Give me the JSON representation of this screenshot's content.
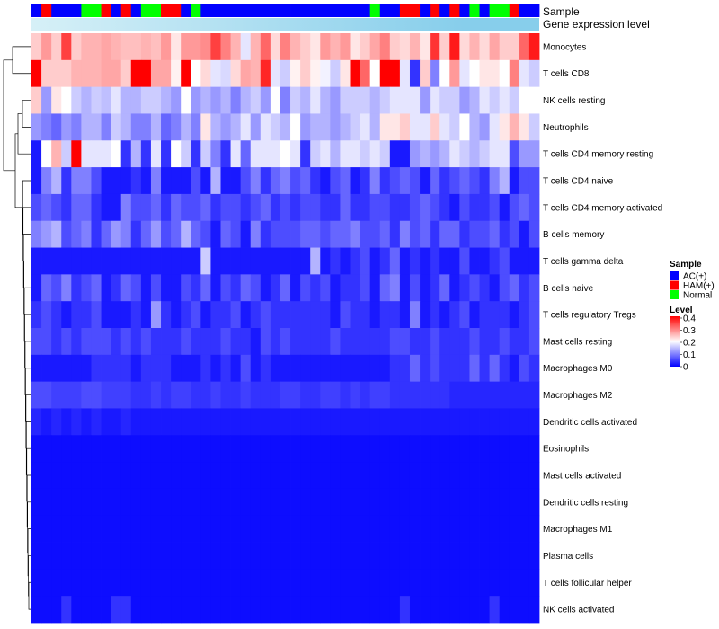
{
  "chart_data": {
    "type": "heatmap",
    "title": "",
    "row_labels": [
      "Monocytes",
      "T cells CD8",
      "NK cells resting",
      "Neutrophils",
      "T cells CD4 memory resting",
      "T cells CD4 naive",
      "T cells CD4 memory activated",
      "B cells memory",
      "T cells gamma delta",
      "B cells naive",
      "T cells regulatory  Tregs",
      "Mast cells resting",
      "Macrophages M0",
      "Macrophages M2",
      "Dendritic cells activated",
      "Eosinophils",
      "Mast cells activated",
      "Dendritic cells resting",
      "Macrophages M1",
      "Plasma cells",
      "T cells follicular helper",
      "NK cells activated"
    ],
    "sample_annotation_label": "Sample",
    "expression_annotation_label": "Gene expression level",
    "sample_groups": [
      "AC(+)",
      "HAM(+)",
      "AC(+)",
      "AC(+)",
      "AC(+)",
      "Normal",
      "Normal",
      "HAM(+)",
      "AC(+)",
      "HAM(+)",
      "AC(+)",
      "Normal",
      "Normal",
      "HAM(+)",
      "HAM(+)",
      "AC(+)",
      "Normal",
      "AC(+)",
      "AC(+)",
      "AC(+)",
      "AC(+)",
      "AC(+)",
      "AC(+)",
      "AC(+)",
      "AC(+)",
      "AC(+)",
      "AC(+)",
      "AC(+)",
      "AC(+)",
      "AC(+)",
      "AC(+)",
      "AC(+)",
      "AC(+)",
      "AC(+)",
      "Normal",
      "AC(+)",
      "AC(+)",
      "HAM(+)",
      "HAM(+)",
      "AC(+)",
      "HAM(+)",
      "AC(+)",
      "HAM(+)",
      "AC(+)",
      "Normal",
      "AC(+)",
      "Normal",
      "Normal",
      "HAM(+)",
      "AC(+)",
      "AC(+)"
    ],
    "color_scale": {
      "min": 0,
      "max": 0.4,
      "low": "#0000ff",
      "mid": "#ffffff",
      "high": "#ff0000"
    },
    "values": [
      [
        0.24,
        0.28,
        0.24,
        0.35,
        0.24,
        0.26,
        0.26,
        0.27,
        0.26,
        0.25,
        0.25,
        0.26,
        0.25,
        0.28,
        0.22,
        0.28,
        0.28,
        0.29,
        0.35,
        0.3,
        0.26,
        0.18,
        0.26,
        0.32,
        0.23,
        0.3,
        0.26,
        0.24,
        0.22,
        0.28,
        0.26,
        0.28,
        0.22,
        0.24,
        0.27,
        0.3,
        0.24,
        0.23,
        0.26,
        0.22,
        0.36,
        0.24,
        0.38,
        0.23,
        0.26,
        0.23,
        0.27,
        0.24,
        0.24,
        0.32,
        0.38
      ],
      [
        0.4,
        0.24,
        0.24,
        0.24,
        0.26,
        0.26,
        0.26,
        0.27,
        0.27,
        0.24,
        0.4,
        0.4,
        0.27,
        0.27,
        0.21,
        0.4,
        0.2,
        0.23,
        0.18,
        0.17,
        0.23,
        0.27,
        0.26,
        0.37,
        0.18,
        0.16,
        0.21,
        0.24,
        0.21,
        0.19,
        0.16,
        0.22,
        0.4,
        0.32,
        0.2,
        0.4,
        0.4,
        0.18,
        0.04,
        0.24,
        0.1,
        0.2,
        0.28,
        0.18,
        0.2,
        0.22,
        0.22,
        0.2,
        0.3,
        0.18,
        0.16
      ],
      [
        0.24,
        0.12,
        0.22,
        0.2,
        0.16,
        0.14,
        0.16,
        0.15,
        0.18,
        0.14,
        0.14,
        0.16,
        0.16,
        0.14,
        0.12,
        0.2,
        0.12,
        0.14,
        0.12,
        0.14,
        0.1,
        0.14,
        0.16,
        0.12,
        0.2,
        0.1,
        0.16,
        0.14,
        0.18,
        0.14,
        0.12,
        0.16,
        0.16,
        0.16,
        0.14,
        0.16,
        0.18,
        0.18,
        0.18,
        0.12,
        0.18,
        0.16,
        0.16,
        0.12,
        0.14,
        0.18,
        0.16,
        0.18,
        0.16,
        0.2,
        0.2
      ],
      [
        0.12,
        0.1,
        0.08,
        0.12,
        0.1,
        0.14,
        0.14,
        0.1,
        0.16,
        0.14,
        0.1,
        0.1,
        0.14,
        0.08,
        0.1,
        0.14,
        0.1,
        0.22,
        0.14,
        0.12,
        0.14,
        0.18,
        0.12,
        0.18,
        0.16,
        0.14,
        0.2,
        0.12,
        0.14,
        0.14,
        0.12,
        0.14,
        0.16,
        0.18,
        0.14,
        0.22,
        0.22,
        0.24,
        0.18,
        0.18,
        0.24,
        0.18,
        0.16,
        0.2,
        0.14,
        0.12,
        0.18,
        0.22,
        0.26,
        0.22,
        0.16
      ],
      [
        0.02,
        0.2,
        0.26,
        0.16,
        0.4,
        0.18,
        0.18,
        0.18,
        0.2,
        0.04,
        0.14,
        0.04,
        0.18,
        0.04,
        0.2,
        0.16,
        0.04,
        0.16,
        0.1,
        0.04,
        0.18,
        0.08,
        0.18,
        0.18,
        0.18,
        0.2,
        0.18,
        0.04,
        0.16,
        0.18,
        0.14,
        0.18,
        0.18,
        0.16,
        0.18,
        0.16,
        0.02,
        0.02,
        0.12,
        0.14,
        0.12,
        0.14,
        0.18,
        0.16,
        0.14,
        0.16,
        0.18,
        0.18,
        0.06,
        0.12,
        0.12
      ],
      [
        0.02,
        0.1,
        0.14,
        0.04,
        0.1,
        0.1,
        0.06,
        0.02,
        0.02,
        0.02,
        0.04,
        0.02,
        0.1,
        0.02,
        0.02,
        0.02,
        0.06,
        0.02,
        0.14,
        0.02,
        0.02,
        0.06,
        0.1,
        0.04,
        0.08,
        0.1,
        0.06,
        0.08,
        0.04,
        0.02,
        0.06,
        0.08,
        0.02,
        0.04,
        0.1,
        0.04,
        0.06,
        0.08,
        0.06,
        0.02,
        0.08,
        0.04,
        0.06,
        0.08,
        0.06,
        0.04,
        0.1,
        0.14,
        0.02,
        0.06,
        0.06
      ],
      [
        0.06,
        0.08,
        0.06,
        0.04,
        0.08,
        0.08,
        0.04,
        0.02,
        0.02,
        0.1,
        0.06,
        0.06,
        0.08,
        0.04,
        0.08,
        0.06,
        0.06,
        0.08,
        0.04,
        0.06,
        0.06,
        0.04,
        0.06,
        0.08,
        0.04,
        0.06,
        0.04,
        0.06,
        0.06,
        0.04,
        0.04,
        0.08,
        0.04,
        0.04,
        0.06,
        0.06,
        0.04,
        0.04,
        0.06,
        0.08,
        0.06,
        0.04,
        0.02,
        0.06,
        0.04,
        0.04,
        0.06,
        0.02,
        0.06,
        0.08,
        0.06
      ],
      [
        0.1,
        0.12,
        0.14,
        0.06,
        0.08,
        0.1,
        0.04,
        0.08,
        0.12,
        0.1,
        0.04,
        0.08,
        0.12,
        0.06,
        0.08,
        0.14,
        0.08,
        0.06,
        0.02,
        0.08,
        0.06,
        0.02,
        0.1,
        0.04,
        0.06,
        0.06,
        0.06,
        0.08,
        0.08,
        0.06,
        0.08,
        0.08,
        0.1,
        0.06,
        0.06,
        0.08,
        0.04,
        0.1,
        0.06,
        0.08,
        0.04,
        0.08,
        0.08,
        0.04,
        0.06,
        0.06,
        0.08,
        0.04,
        0.06,
        0.02,
        0.06
      ],
      [
        0.02,
        0.02,
        0.02,
        0.02,
        0.02,
        0.02,
        0.02,
        0.02,
        0.02,
        0.02,
        0.02,
        0.02,
        0.02,
        0.02,
        0.02,
        0.02,
        0.02,
        0.16,
        0.02,
        0.02,
        0.02,
        0.02,
        0.02,
        0.02,
        0.02,
        0.02,
        0.02,
        0.02,
        0.14,
        0.02,
        0.04,
        0.02,
        0.04,
        0.06,
        0.02,
        0.04,
        0.08,
        0.02,
        0.04,
        0.02,
        0.04,
        0.02,
        0.02,
        0.06,
        0.02,
        0.02,
        0.04,
        0.06,
        0.02,
        0.02,
        0.02
      ],
      [
        0.02,
        0.08,
        0.06,
        0.1,
        0.04,
        0.06,
        0.08,
        0.02,
        0.04,
        0.08,
        0.06,
        0.02,
        0.06,
        0.02,
        0.02,
        0.06,
        0.04,
        0.08,
        0.02,
        0.06,
        0.04,
        0.08,
        0.06,
        0.02,
        0.04,
        0.08,
        0.02,
        0.06,
        0.04,
        0.06,
        0.02,
        0.04,
        0.04,
        0.06,
        0.02,
        0.08,
        0.1,
        0.02,
        0.06,
        0.02,
        0.04,
        0.08,
        0.02,
        0.04,
        0.06,
        0.04,
        0.02,
        0.06,
        0.08,
        0.04,
        0.06
      ],
      [
        0.04,
        0.06,
        0.04,
        0.02,
        0.04,
        0.04,
        0.06,
        0.02,
        0.02,
        0.02,
        0.04,
        0.02,
        0.12,
        0.04,
        0.02,
        0.04,
        0.06,
        0.02,
        0.04,
        0.04,
        0.06,
        0.02,
        0.04,
        0.06,
        0.04,
        0.04,
        0.04,
        0.04,
        0.04,
        0.04,
        0.02,
        0.06,
        0.04,
        0.04,
        0.02,
        0.04,
        0.04,
        0.02,
        0.1,
        0.02,
        0.04,
        0.02,
        0.04,
        0.06,
        0.02,
        0.04,
        0.04,
        0.04,
        0.02,
        0.04,
        0.06
      ],
      [
        0.06,
        0.06,
        0.04,
        0.06,
        0.04,
        0.06,
        0.06,
        0.06,
        0.04,
        0.06,
        0.04,
        0.06,
        0.04,
        0.04,
        0.04,
        0.06,
        0.04,
        0.04,
        0.04,
        0.06,
        0.04,
        0.04,
        0.02,
        0.06,
        0.04,
        0.06,
        0.04,
        0.04,
        0.04,
        0.04,
        0.06,
        0.04,
        0.04,
        0.04,
        0.04,
        0.04,
        0.06,
        0.06,
        0.04,
        0.04,
        0.06,
        0.04,
        0.04,
        0.04,
        0.06,
        0.04,
        0.04,
        0.06,
        0.04,
        0.04,
        0.06
      ],
      [
        0.02,
        0.02,
        0.02,
        0.02,
        0.02,
        0.02,
        0.04,
        0.04,
        0.04,
        0.04,
        0.02,
        0.04,
        0.04,
        0.04,
        0.02,
        0.02,
        0.02,
        0.04,
        0.02,
        0.04,
        0.02,
        0.06,
        0.02,
        0.04,
        0.02,
        0.02,
        0.02,
        0.02,
        0.02,
        0.02,
        0.02,
        0.02,
        0.02,
        0.02,
        0.02,
        0.02,
        0.04,
        0.04,
        0.08,
        0.04,
        0.06,
        0.04,
        0.04,
        0.04,
        0.08,
        0.04,
        0.08,
        0.04,
        0.02,
        0.06,
        0.04
      ],
      [
        0.06,
        0.06,
        0.05,
        0.05,
        0.05,
        0.06,
        0.06,
        0.05,
        0.05,
        0.05,
        0.04,
        0.04,
        0.05,
        0.04,
        0.05,
        0.05,
        0.04,
        0.04,
        0.05,
        0.04,
        0.04,
        0.05,
        0.04,
        0.04,
        0.04,
        0.05,
        0.05,
        0.04,
        0.04,
        0.05,
        0.05,
        0.04,
        0.05,
        0.04,
        0.05,
        0.05,
        0.04,
        0.04,
        0.04,
        0.04,
        0.04,
        0.04,
        0.03,
        0.03,
        0.03,
        0.03,
        0.03,
        0.03,
        0.03,
        0.03,
        0.03
      ],
      [
        0.03,
        0.02,
        0.03,
        0.02,
        0.03,
        0.02,
        0.03,
        0.02,
        0.02,
        0.03,
        0.02,
        0.02,
        0.02,
        0.02,
        0.02,
        0.02,
        0.02,
        0.02,
        0.02,
        0.02,
        0.02,
        0.02,
        0.02,
        0.02,
        0.02,
        0.02,
        0.02,
        0.02,
        0.02,
        0.02,
        0.02,
        0.02,
        0.02,
        0.02,
        0.02,
        0.02,
        0.02,
        0.02,
        0.02,
        0.02,
        0.02,
        0.02,
        0.02,
        0.02,
        0.02,
        0.02,
        0.02,
        0.02,
        0.02,
        0.02,
        0.02
      ],
      [
        0.01,
        0.01,
        0.01,
        0.01,
        0.01,
        0.01,
        0.01,
        0.01,
        0.01,
        0.01,
        0.01,
        0.01,
        0.01,
        0.01,
        0.01,
        0.01,
        0.01,
        0.01,
        0.01,
        0.01,
        0.01,
        0.01,
        0.01,
        0.01,
        0.01,
        0.01,
        0.01,
        0.01,
        0.01,
        0.01,
        0.01,
        0.01,
        0.01,
        0.01,
        0.01,
        0.01,
        0.01,
        0.01,
        0.01,
        0.01,
        0.01,
        0.01,
        0.01,
        0.01,
        0.01,
        0.01,
        0.01,
        0.01,
        0.01,
        0.01,
        0.01
      ],
      [
        0.01,
        0.01,
        0.01,
        0.01,
        0.01,
        0.01,
        0.01,
        0.01,
        0.01,
        0.01,
        0.01,
        0.01,
        0.01,
        0.01,
        0.01,
        0.01,
        0.01,
        0.01,
        0.01,
        0.01,
        0.01,
        0.01,
        0.01,
        0.01,
        0.01,
        0.01,
        0.01,
        0.01,
        0.01,
        0.01,
        0.01,
        0.01,
        0.01,
        0.01,
        0.01,
        0.01,
        0.01,
        0.01,
        0.01,
        0.01,
        0.01,
        0.01,
        0.01,
        0.01,
        0.01,
        0.01,
        0.01,
        0.01,
        0.01,
        0.01,
        0.01
      ],
      [
        0.01,
        0.01,
        0.01,
        0.01,
        0.01,
        0.01,
        0.01,
        0.01,
        0.01,
        0.01,
        0.01,
        0.01,
        0.01,
        0.01,
        0.01,
        0.01,
        0.01,
        0.01,
        0.01,
        0.01,
        0.01,
        0.01,
        0.01,
        0.01,
        0.01,
        0.01,
        0.01,
        0.01,
        0.01,
        0.01,
        0.01,
        0.01,
        0.01,
        0.01,
        0.01,
        0.01,
        0.01,
        0.01,
        0.01,
        0.01,
        0.01,
        0.01,
        0.01,
        0.01,
        0.01,
        0.01,
        0.01,
        0.01,
        0.01,
        0.01,
        0.01
      ],
      [
        0.01,
        0.01,
        0.01,
        0.01,
        0.01,
        0.01,
        0.01,
        0.01,
        0.01,
        0.01,
        0.01,
        0.01,
        0.01,
        0.01,
        0.01,
        0.01,
        0.01,
        0.01,
        0.01,
        0.01,
        0.01,
        0.01,
        0.01,
        0.01,
        0.01,
        0.01,
        0.01,
        0.01,
        0.01,
        0.01,
        0.01,
        0.01,
        0.01,
        0.01,
        0.01,
        0.01,
        0.01,
        0.01,
        0.01,
        0.01,
        0.01,
        0.01,
        0.01,
        0.01,
        0.01,
        0.01,
        0.01,
        0.01,
        0.01,
        0.01,
        0.01
      ],
      [
        0.01,
        0.01,
        0.01,
        0.01,
        0.01,
        0.01,
        0.01,
        0.01,
        0.01,
        0.01,
        0.01,
        0.01,
        0.01,
        0.01,
        0.01,
        0.01,
        0.01,
        0.01,
        0.01,
        0.01,
        0.01,
        0.01,
        0.01,
        0.01,
        0.01,
        0.01,
        0.01,
        0.01,
        0.01,
        0.01,
        0.01,
        0.01,
        0.01,
        0.01,
        0.01,
        0.01,
        0.01,
        0.01,
        0.01,
        0.01,
        0.01,
        0.01,
        0.01,
        0.01,
        0.01,
        0.01,
        0.01,
        0.01,
        0.01,
        0.01,
        0.01
      ],
      [
        0.01,
        0.01,
        0.01,
        0.01,
        0.01,
        0.01,
        0.01,
        0.01,
        0.01,
        0.01,
        0.01,
        0.01,
        0.01,
        0.01,
        0.01,
        0.01,
        0.01,
        0.01,
        0.01,
        0.01,
        0.01,
        0.01,
        0.01,
        0.01,
        0.01,
        0.01,
        0.01,
        0.01,
        0.01,
        0.01,
        0.01,
        0.01,
        0.01,
        0.01,
        0.01,
        0.01,
        0.01,
        0.01,
        0.01,
        0.01,
        0.01,
        0.01,
        0.01,
        0.01,
        0.01,
        0.01,
        0.01,
        0.01,
        0.01,
        0.01,
        0.01
      ],
      [
        0.01,
        0.01,
        0.01,
        0.04,
        0.01,
        0.01,
        0.01,
        0.01,
        0.04,
        0.04,
        0.01,
        0.01,
        0.01,
        0.01,
        0.01,
        0.01,
        0.01,
        0.01,
        0.01,
        0.01,
        0.01,
        0.01,
        0.01,
        0.01,
        0.01,
        0.01,
        0.01,
        0.01,
        0.01,
        0.01,
        0.01,
        0.01,
        0.01,
        0.01,
        0.01,
        0.01,
        0.01,
        0.04,
        0.01,
        0.01,
        0.01,
        0.01,
        0.01,
        0.01,
        0.01,
        0.01,
        0.04,
        0.01,
        0.01,
        0.01,
        0.01
      ]
    ],
    "legend_sample": {
      "title": "Sample",
      "entries": [
        {
          "label": "AC(+)",
          "color": "#0000ff"
        },
        {
          "label": "HAM(+)",
          "color": "#ff0000"
        },
        {
          "label": "Normal",
          "color": "#00ff00"
        }
      ]
    },
    "legend_level": {
      "title": "Level",
      "ticks": [
        0.4,
        0.3,
        0.2,
        0.1,
        0
      ],
      "tick_labels": [
        "0.4",
        "0.3",
        "0.2",
        "0.1",
        "0"
      ]
    },
    "expression_bar_colors": [
      "#87ceeb",
      "#d6f0f7"
    ]
  }
}
